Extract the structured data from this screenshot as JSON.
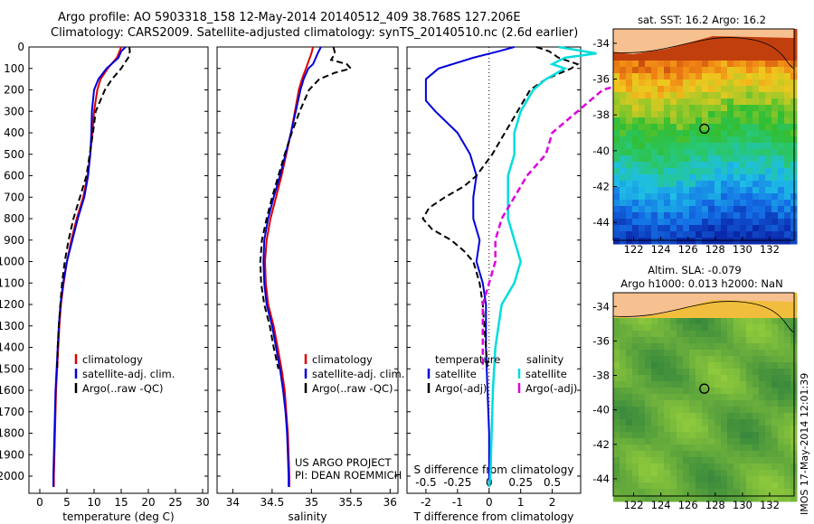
{
  "title_line1": "Argo profile: AO 5903318_158 12-May-2014 20140512_409 38.768S 127.206E",
  "title_line2": "Climatology: CARS2009. Satellite-adjusted climatology: synTS_20140510.nc (2.6d earlier)",
  "footer_stamp": "IMOS 17-May-2014 12:01:39",
  "colors": {
    "climatology": "#e00000",
    "satellite": "#0000dd",
    "argo": "#000000",
    "sal_sat": "#00dddd",
    "sal_argo": "#dd00dd"
  },
  "chart_data": [
    {
      "type": "line",
      "xlabel": "temperature (deg C)",
      "xlim": [
        -2,
        31
      ],
      "xticks": [
        "0",
        "5",
        "10",
        "15",
        "20",
        "25",
        "30"
      ],
      "ylim": [
        2080,
        0
      ],
      "yticks": [
        "0",
        "100",
        "200",
        "300",
        "400",
        "500",
        "600",
        "700",
        "800",
        "900",
        "1000",
        "1100",
        "1200",
        "1300",
        "1400",
        "1500",
        "1600",
        "1700",
        "1800",
        "1900",
        "2000"
      ],
      "legend": [
        "climatology",
        "satellite-adj. clim.",
        "Argo(..raw -QC)"
      ],
      "series": [
        {
          "name": "climatology",
          "depth": [
            0,
            20,
            50,
            100,
            150,
            200,
            300,
            400,
            500,
            600,
            700,
            800,
            900,
            1000,
            1100,
            1200,
            1300,
            1400,
            1500,
            1600,
            1700,
            1800,
            1900,
            2000,
            2050
          ],
          "values": [
            15.0,
            14.7,
            14.2,
            12.5,
            11.2,
            10.6,
            10.0,
            9.7,
            9.3,
            8.8,
            8.0,
            6.8,
            5.8,
            5.0,
            4.4,
            3.9,
            3.6,
            3.4,
            3.2,
            3.0,
            2.9,
            2.8,
            2.7,
            2.6,
            2.6
          ]
        },
        {
          "name": "satellite-adj. clim.",
          "depth": [
            0,
            20,
            50,
            100,
            150,
            200,
            300,
            400,
            500,
            600,
            700,
            800,
            900,
            1000,
            1100,
            1200,
            1300,
            1400,
            1500,
            1600,
            1700,
            1800,
            1900,
            2000,
            2050
          ],
          "values": [
            15.8,
            15.0,
            14.5,
            12.3,
            10.8,
            10.0,
            9.6,
            9.5,
            9.3,
            8.9,
            8.2,
            7.0,
            6.0,
            5.0,
            4.3,
            3.8,
            3.5,
            3.3,
            3.1,
            2.9,
            2.8,
            2.7,
            2.6,
            2.5,
            2.5
          ]
        },
        {
          "name": "Argo(..raw -QC)",
          "depth": [
            0,
            20,
            50,
            80,
            100,
            150,
            200,
            300,
            400,
            500,
            600,
            700,
            800,
            900,
            1000,
            1100,
            1200,
            1300,
            1400,
            1500
          ],
          "values": [
            16.5,
            16.6,
            16.3,
            15.5,
            15.0,
            13.3,
            12.0,
            10.3,
            9.8,
            9.2,
            8.6,
            7.4,
            6.2,
            5.3,
            4.6,
            4.1,
            3.8,
            3.5,
            3.3,
            3.2
          ]
        }
      ]
    },
    {
      "type": "line",
      "xlabel": "salinity",
      "xlim": [
        33.8,
        36.1
      ],
      "xticks": [
        "34",
        "34.5",
        "35",
        "35.5",
        "36"
      ],
      "ylim": [
        2080,
        0
      ],
      "legend": [
        "climatology",
        "satellite-adj. clim.",
        "Argo(..raw -QC)"
      ],
      "annotation": [
        "US ARGO PROJECT",
        "PI: DEAN ROEMMICH"
      ],
      "series": [
        {
          "name": "climatology",
          "depth": [
            0,
            30,
            80,
            100,
            150,
            200,
            300,
            400,
            500,
            600,
            700,
            800,
            900,
            1000,
            1100,
            1200,
            1300,
            1400,
            1500,
            1600,
            1700,
            1800,
            1900,
            2000,
            2050
          ],
          "values": [
            35.02,
            35.0,
            34.95,
            34.93,
            34.88,
            34.84,
            34.79,
            34.74,
            34.68,
            34.62,
            34.55,
            34.48,
            34.43,
            34.41,
            34.42,
            34.45,
            34.52,
            34.57,
            34.62,
            34.66,
            34.68,
            34.7,
            34.71,
            34.72,
            34.72
          ]
        },
        {
          "name": "satellite-adj. clim.",
          "depth": [
            0,
            30,
            80,
            100,
            150,
            200,
            300,
            400,
            500,
            600,
            700,
            800,
            900,
            1000,
            1100,
            1200,
            1300,
            1400,
            1500,
            1600,
            1700,
            1800,
            1900,
            2000,
            2050
          ],
          "values": [
            35.12,
            35.08,
            35.02,
            34.96,
            34.9,
            34.86,
            34.8,
            34.74,
            34.67,
            34.6,
            34.52,
            34.45,
            34.4,
            34.39,
            34.4,
            34.43,
            34.5,
            34.55,
            34.6,
            34.64,
            34.67,
            34.69,
            34.7,
            34.71,
            34.71
          ]
        },
        {
          "name": "Argo(..raw -QC)",
          "depth": [
            0,
            30,
            60,
            80,
            100,
            120,
            150,
            200,
            300,
            400,
            500,
            600,
            700,
            800,
            900,
            1000,
            1100,
            1200,
            1300,
            1400,
            1500
          ],
          "values": [
            35.28,
            35.3,
            35.25,
            35.45,
            35.5,
            35.3,
            35.1,
            34.97,
            34.85,
            34.75,
            34.66,
            34.58,
            34.5,
            34.43,
            34.37,
            34.35,
            34.36,
            34.4,
            34.47,
            34.52,
            34.58
          ]
        }
      ]
    },
    {
      "type": "line",
      "xlabel": "T difference from climatology",
      "xlabel_top": "S difference from climatology",
      "xlim": [
        -2.6,
        2.9
      ],
      "xticks": [
        "-2",
        "-1",
        "0",
        "1",
        "2"
      ],
      "xticks_top": [
        "-0.5",
        "-0.25",
        "0",
        "0.25",
        "0.5"
      ],
      "ylim": [
        2080,
        0
      ],
      "legend_titles": [
        "temperature",
        "salinity"
      ],
      "legend": [
        "satellite",
        "Argo(-adj)",
        "satellite",
        "Argo(-adj)"
      ],
      "series": [
        {
          "name": "satellite",
          "group": "temperature",
          "depth": [
            0,
            20,
            50,
            100,
            150,
            200,
            250,
            300,
            400,
            500,
            600,
            700,
            800,
            900,
            1000,
            1100,
            1200,
            1400,
            1600,
            1800,
            2000,
            2050
          ],
          "values": [
            0.8,
            0.3,
            -0.5,
            -1.6,
            -2.0,
            -2.0,
            -2.0,
            -1.7,
            -1.0,
            -0.6,
            -0.4,
            -0.5,
            -0.5,
            -0.3,
            -0.4,
            -0.2,
            -0.1,
            -0.1,
            -0.05,
            0.0,
            0.0,
            0.0
          ]
        },
        {
          "name": "Argo(-adj)",
          "group": "temperature",
          "depth": [
            0,
            20,
            50,
            80,
            100,
            150,
            200,
            300,
            400,
            500,
            600,
            650,
            700,
            750,
            800,
            850,
            900,
            950,
            1000,
            1100,
            1200,
            1300,
            1400,
            1500
          ],
          "values": [
            1.5,
            1.9,
            2.2,
            2.8,
            2.6,
            1.8,
            1.3,
            0.9,
            0.5,
            0.1,
            -0.4,
            -0.8,
            -1.4,
            -1.9,
            -2.1,
            -1.8,
            -1.2,
            -0.8,
            -0.5,
            -0.3,
            -0.2,
            -0.15,
            -0.1,
            -0.05
          ]
        },
        {
          "name": "satellite",
          "group": "salinity",
          "depth": [
            0,
            30,
            50,
            80,
            100,
            150,
            200,
            300,
            400,
            500,
            600,
            700,
            800,
            900,
            1000,
            1100,
            1200,
            1400,
            1600,
            1800,
            2000,
            2050
          ],
          "values": [
            0.55,
            0.85,
            0.6,
            0.5,
            0.6,
            0.45,
            0.35,
            0.25,
            0.2,
            0.2,
            0.15,
            0.15,
            0.15,
            0.2,
            0.25,
            0.2,
            0.1,
            0.05,
            0.03,
            0.02,
            0.01,
            0.0
          ]
        },
        {
          "name": "Argo(-adj)",
          "group": "salinity",
          "depth": [
            0,
            30,
            50,
            80,
            100,
            150,
            200,
            300,
            400,
            500,
            600,
            700,
            800,
            900,
            1000,
            1100,
            1200,
            1300,
            1400,
            1500
          ],
          "values": [
            1.5,
            1.6,
            1.7,
            2.0,
            1.8,
            1.2,
            0.9,
            0.7,
            0.5,
            0.45,
            0.3,
            0.2,
            0.1,
            0.05,
            0.05,
            0.0,
            -0.05,
            -0.05,
            -0.05,
            -0.05
          ]
        }
      ]
    },
    {
      "type": "heatmap",
      "title": "sat. SST: 16.2 Argo: 16.2",
      "xticks": [
        "122",
        "124",
        "126",
        "128",
        "130",
        "132"
      ],
      "yticks": [
        "-34",
        "-36",
        "-38",
        "-40",
        "-42",
        "-44"
      ],
      "xlim": [
        120.5,
        133.8
      ],
      "ylim": [
        -45,
        -33.2
      ],
      "marker": {
        "lon": 127.2,
        "lat": -38.77
      }
    },
    {
      "type": "heatmap",
      "title_line1": "Altim. SLA: -0.079",
      "title_line2": "Argo h1000: 0.013 h2000: NaN",
      "xticks": [
        "122",
        "124",
        "126",
        "128",
        "130",
        "132"
      ],
      "yticks": [
        "-34",
        "-36",
        "-38",
        "-40",
        "-42",
        "-44"
      ],
      "xlim": [
        120.5,
        133.8
      ],
      "ylim": [
        -45,
        -33.2
      ],
      "marker": {
        "lon": 127.2,
        "lat": -38.77
      }
    }
  ]
}
